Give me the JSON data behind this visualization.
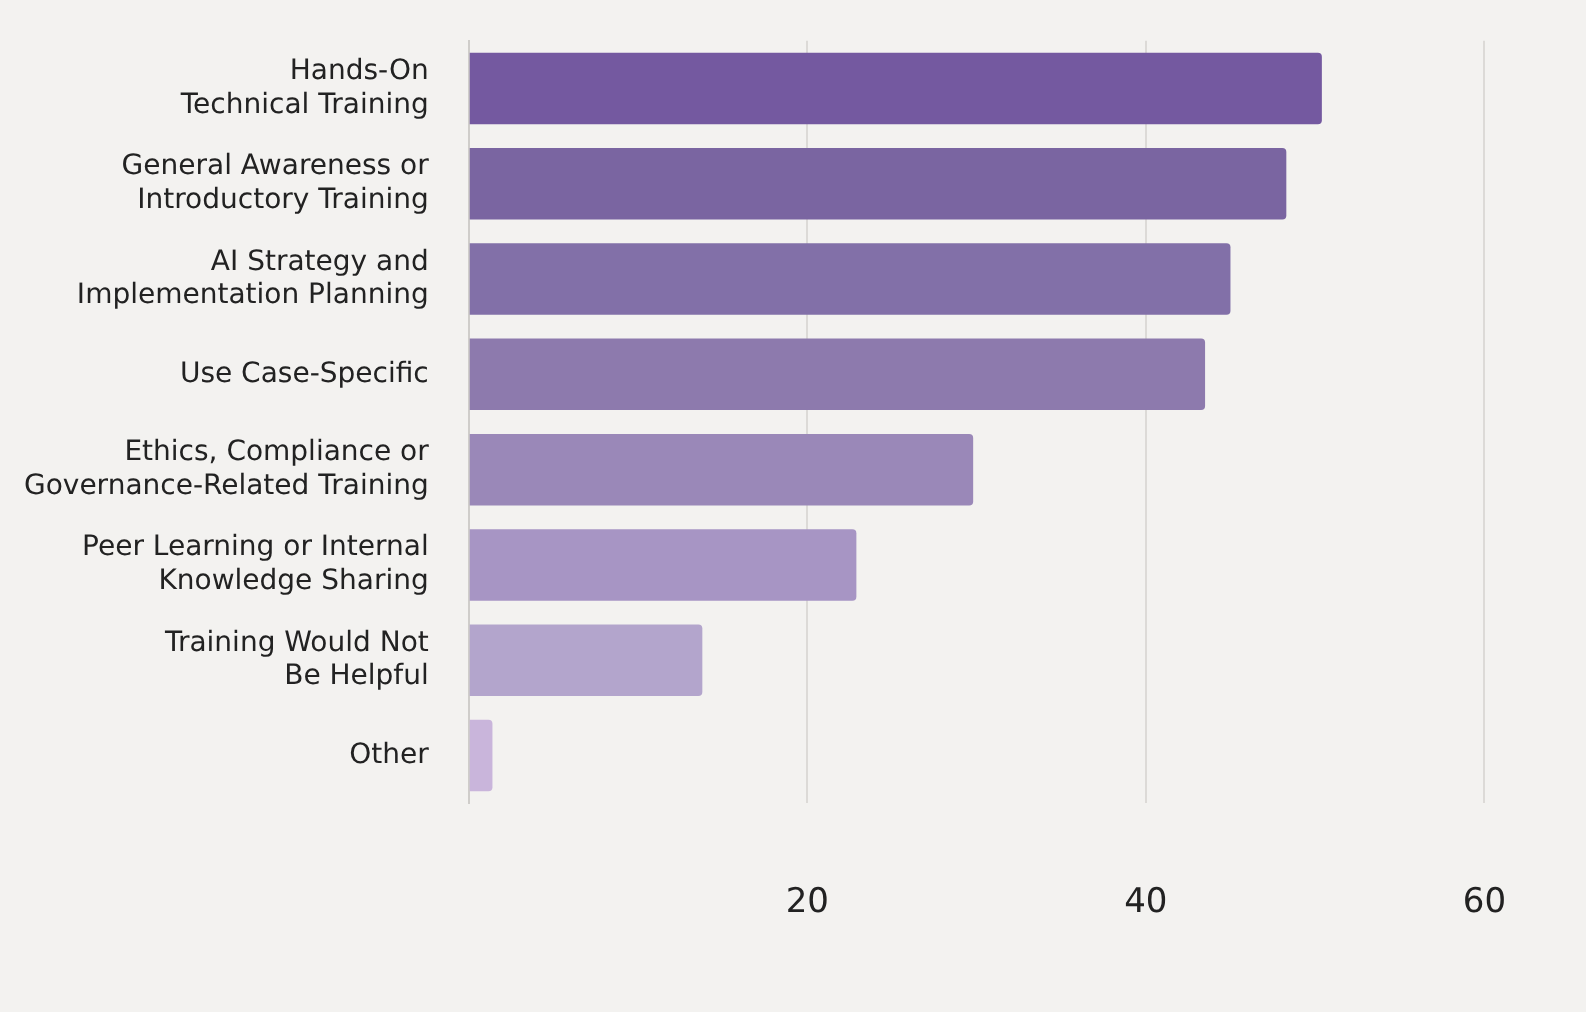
{
  "chart_data": {
    "type": "bar",
    "orientation": "horizontal",
    "categories": [
      "Hands-On\nTechnical Training",
      "General Awareness or\nIntroductory Training",
      "AI Strategy and\nImplementation Planning",
      "Use Case-Specific",
      "Ethics, Compliance or\nGovernance-Related Training",
      "Peer Learning or Internal\nKnowledge Sharing",
      "Training Would Not\nBe Helpful",
      "Other"
    ],
    "values": [
      50.4,
      48.3,
      45.0,
      43.5,
      29.8,
      22.9,
      13.8,
      1.4
    ],
    "colors": [
      "#7459a0",
      "#7a65a1",
      "#8270a8",
      "#8d7aad",
      "#9a88b8",
      "#a795c4",
      "#b3a5cc",
      "#c9b5db"
    ],
    "xlim": [
      0,
      60
    ],
    "xticks": [
      {
        "value": 0,
        "label": null
      },
      20,
      40,
      60
    ],
    "grid": "x",
    "legend": false
  }
}
